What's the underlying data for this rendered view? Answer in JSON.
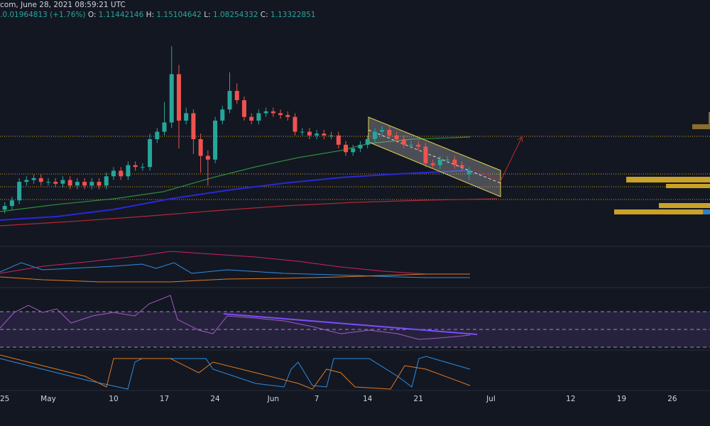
{
  "chart_data": {
    "type": "candlestick",
    "title": "com, June 28, 2021 08:59:21 UTC",
    "subtitle": ".0.01964813 (+1.76%)",
    "ohlc_labels": {
      "open": "O:",
      "open_value": "1.11442146",
      "high": "H:",
      "high_value": "1.15104642",
      "low": "L:",
      "low_value": "1.08254332",
      "close": "C:",
      "close_value": "1.13322851"
    },
    "categories": [
      null,
      "25",
      null,
      null,
      null,
      null,
      null,
      "May",
      null,
      null,
      null,
      null,
      null,
      null,
      null,
      null,
      "10",
      null,
      null,
      null,
      null,
      null,
      null,
      "17",
      null,
      null,
      null,
      null,
      null,
      null,
      "24",
      null,
      null,
      null,
      null,
      null,
      null,
      null,
      "Jun",
      null,
      null,
      null,
      null,
      null,
      "7",
      null,
      null,
      null,
      null,
      null,
      null,
      "14",
      null,
      null,
      null,
      null,
      null,
      null,
      "21",
      null,
      null,
      null,
      null,
      null,
      null,
      null,
      null,
      null,
      "Jul",
      null,
      null,
      null,
      null,
      null,
      null,
      null,
      null,
      null,
      null,
      "12",
      null,
      null,
      null,
      null,
      null,
      null,
      "19",
      null,
      null,
      null,
      null,
      null,
      null,
      "26",
      null,
      null,
      null,
      null,
      null,
      null
    ],
    "open": [
      0.9,
      0.92,
      0.94,
      0.97,
      1.07,
      1.08,
      1.09,
      1.07,
      1.07,
      1.06,
      1.08,
      1.05,
      1.07,
      1.05,
      1.07,
      1.05,
      1.1,
      1.13,
      1.1,
      1.16,
      1.15,
      1.15,
      1.3,
      1.34,
      1.39,
      1.65,
      1.4,
      1.44,
      1.3,
      1.21,
      1.19,
      1.4,
      1.46,
      1.56,
      1.51,
      1.42,
      1.4,
      1.44,
      1.45,
      1.44,
      1.43,
      1.42,
      1.34,
      1.34,
      1.32,
      1.33,
      1.32,
      1.32,
      1.27,
      1.23,
      1.25,
      1.27,
      1.3,
      1.34,
      1.35,
      1.32,
      1.3,
      1.27,
      1.27,
      1.26,
      1.17,
      1.16,
      1.19,
      1.19,
      1.16,
      1.11,
      null,
      null,
      null,
      null,
      null,
      null,
      null,
      null,
      null,
      null,
      null,
      null,
      null,
      null,
      null,
      null,
      null,
      null,
      null,
      null,
      null,
      null,
      null,
      null,
      null,
      null,
      null,
      null,
      null,
      null,
      null,
      null,
      null,
      null
    ],
    "high": [
      0.94,
      0.96,
      0.99,
      1.09,
      1.1,
      1.11,
      1.11,
      1.09,
      1.09,
      1.1,
      1.1,
      1.09,
      1.09,
      1.09,
      1.09,
      1.12,
      1.15,
      1.15,
      1.18,
      1.18,
      1.17,
      1.33,
      1.36,
      1.5,
      1.8,
      1.7,
      1.47,
      1.46,
      1.33,
      1.24,
      1.42,
      1.48,
      1.66,
      1.6,
      1.53,
      1.44,
      1.46,
      1.47,
      1.47,
      1.46,
      1.45,
      1.44,
      1.36,
      1.36,
      1.35,
      1.35,
      1.34,
      1.34,
      1.29,
      1.27,
      1.29,
      1.32,
      1.36,
      1.37,
      1.37,
      1.34,
      1.32,
      1.29,
      1.29,
      1.28,
      1.19,
      1.21,
      1.21,
      1.21,
      1.18,
      1.15,
      null,
      null,
      null,
      null,
      null,
      null,
      null,
      null,
      null,
      null,
      null,
      null,
      null,
      null,
      null,
      null,
      null,
      null,
      null,
      null,
      null,
      null,
      null,
      null,
      null,
      null,
      null,
      null,
      null,
      null,
      null,
      null,
      null,
      null
    ],
    "low": [
      0.88,
      0.9,
      0.92,
      0.95,
      1.05,
      1.06,
      1.05,
      1.05,
      1.04,
      1.04,
      1.03,
      1.03,
      1.03,
      1.03,
      1.03,
      1.03,
      1.08,
      1.08,
      1.08,
      1.13,
      1.13,
      1.13,
      1.28,
      1.32,
      1.36,
      1.25,
      1.38,
      1.22,
      1.12,
      1.05,
      1.17,
      1.38,
      1.44,
      1.49,
      1.4,
      1.38,
      1.38,
      1.42,
      1.42,
      1.41,
      1.4,
      1.32,
      1.32,
      1.3,
      1.3,
      1.3,
      1.3,
      1.25,
      1.21,
      1.21,
      1.23,
      1.25,
      1.28,
      1.32,
      1.3,
      1.28,
      1.25,
      1.25,
      1.24,
      1.15,
      1.14,
      1.14,
      1.17,
      1.14,
      1.13,
      1.08,
      null,
      null,
      null,
      null,
      null,
      null,
      null,
      null,
      null,
      null,
      null,
      null,
      null,
      null,
      null,
      null,
      null,
      null,
      null,
      null,
      null,
      null,
      null,
      null,
      null,
      null,
      null,
      null,
      null,
      null,
      null,
      null,
      null,
      null
    ],
    "close": [
      0.92,
      0.94,
      0.97,
      1.07,
      1.08,
      1.09,
      1.07,
      1.07,
      1.06,
      1.08,
      1.05,
      1.07,
      1.05,
      1.07,
      1.05,
      1.1,
      1.13,
      1.1,
      1.16,
      1.15,
      1.15,
      1.3,
      1.34,
      1.39,
      1.65,
      1.4,
      1.44,
      1.3,
      1.21,
      1.19,
      1.4,
      1.46,
      1.56,
      1.51,
      1.42,
      1.4,
      1.44,
      1.45,
      1.44,
      1.43,
      1.42,
      1.34,
      1.34,
      1.32,
      1.33,
      1.32,
      1.32,
      1.27,
      1.23,
      1.25,
      1.27,
      1.3,
      1.34,
      1.35,
      1.32,
      1.3,
      1.27,
      1.27,
      1.26,
      1.17,
      1.16,
      1.19,
      1.19,
      1.16,
      1.15,
      1.13,
      null,
      null,
      null,
      null,
      null,
      null,
      null,
      null,
      null,
      null,
      null,
      null,
      null,
      null,
      null,
      null,
      null,
      null,
      null,
      null,
      null,
      null,
      null,
      null,
      null,
      null,
      null,
      null,
      null,
      null,
      null,
      null,
      null,
      null
    ],
    "up_color": "#26a69a",
    "down_color": "#ef5350",
    "ylim": [
      0.73,
      2.05
    ]
  }
}
